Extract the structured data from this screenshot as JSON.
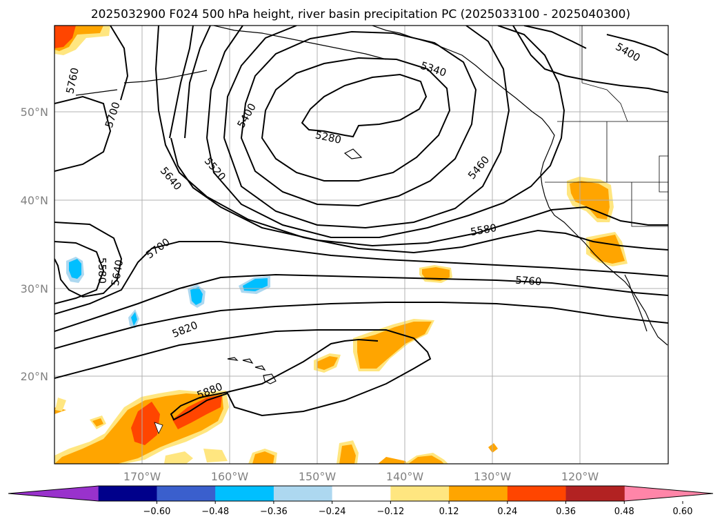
{
  "title": "2025032900 F024 500 hPa height, river basin precipitation PC (2025033100 - 2025040300)",
  "lat_labels": [
    "50°N",
    "40°N",
    "30°N",
    "20°N"
  ],
  "lon_labels": [
    "170°W",
    "160°W",
    "150°W",
    "140°W",
    "130°W",
    "120°W"
  ],
  "contour_labels": {
    "c5280": "5280",
    "c5340": "5340",
    "c5400a": "5400",
    "c5400b": "5400",
    "c5460": "5460",
    "c5520": "5520",
    "c5580a": "5580",
    "c5580b": "5580",
    "c5640a": "5640",
    "c5640b": "5640",
    "c5700a": "5700",
    "c5700b": "5700",
    "c5760a": "5760",
    "c5760b": "5760",
    "c5820": "5820",
    "c5880": "5880"
  },
  "colorbar": {
    "ticks": [
      "−0.60",
      "−0.48",
      "−0.36",
      "−0.24",
      "−0.12",
      "0.12",
      "0.24",
      "0.36",
      "0.48",
      "0.60"
    ],
    "colors": [
      "#9932cc",
      "#00008b",
      "#3a5fcd",
      "#00bfff",
      "#add8f0",
      "#ffffff",
      "#ffe680",
      "#ffa500",
      "#ff4500",
      "#b22222",
      "#ff85a8"
    ]
  },
  "legend_colors": {
    "pos_low": "#ffe680",
    "pos_mid": "#ffa500",
    "pos_high": "#ff4500",
    "neg_low": "#add8f0",
    "neg_mid": "#00bfff"
  }
}
